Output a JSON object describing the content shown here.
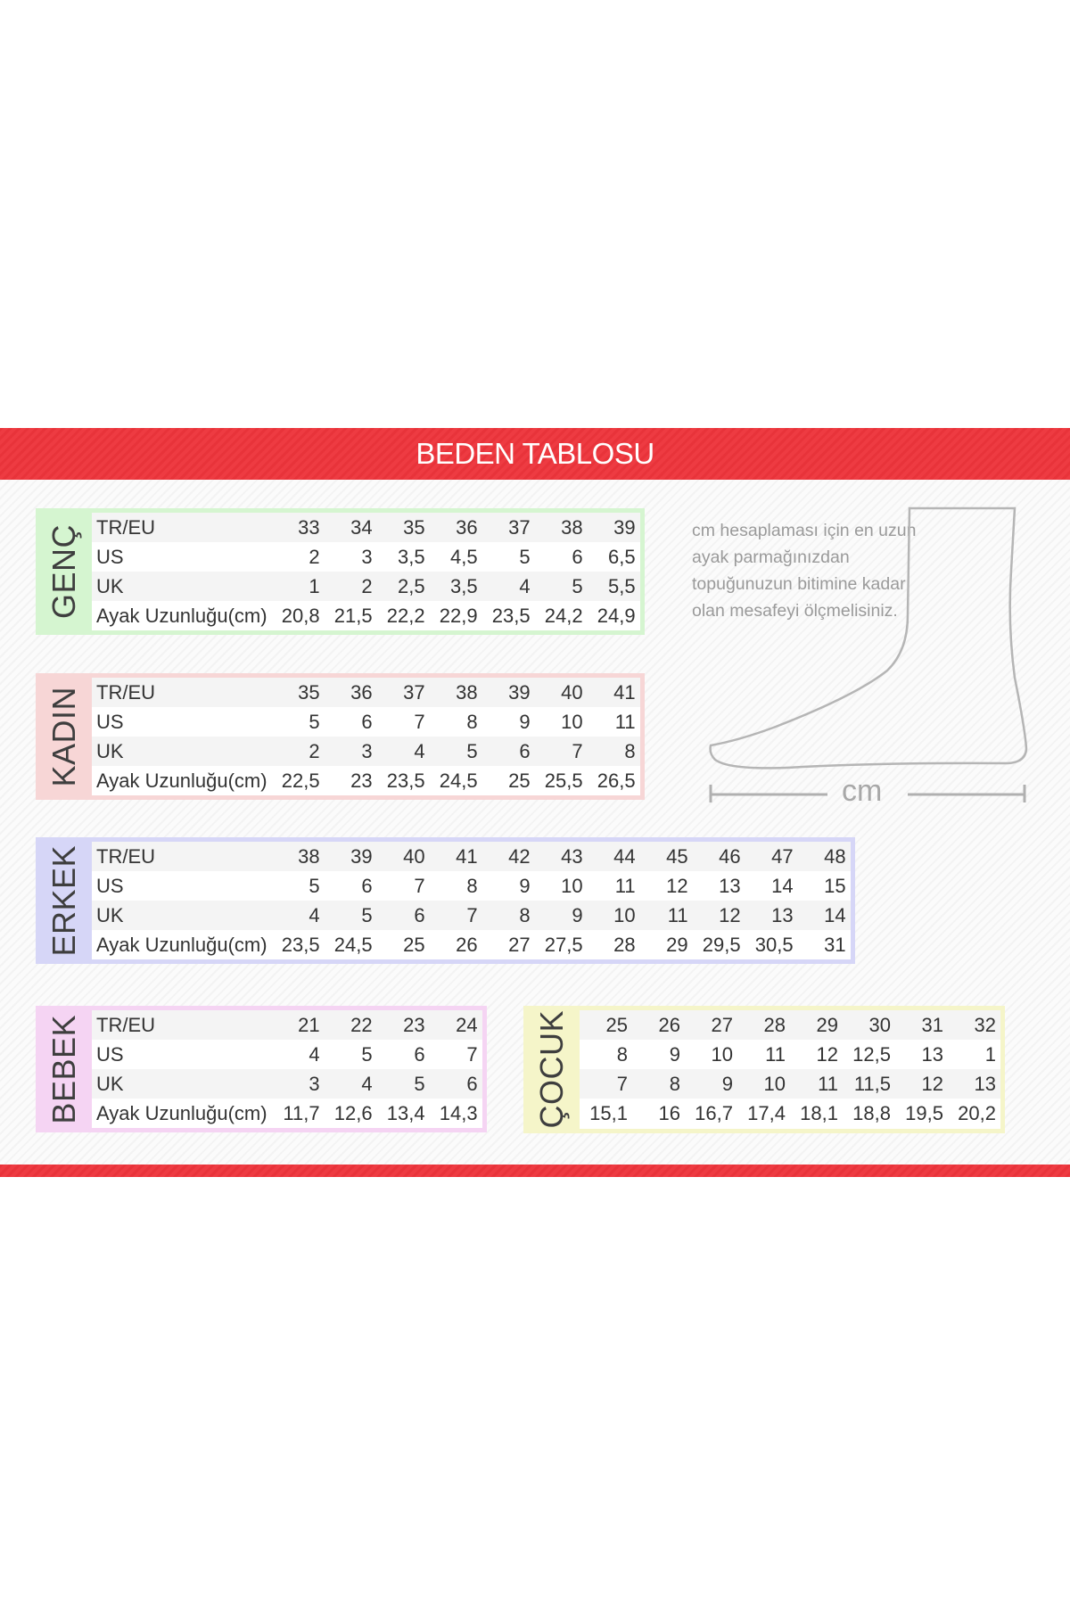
{
  "title": "BEDEN TABLOSU",
  "note": "cm hesaplaması için en uzun ayak parmağınızdan topuğunuzun bitimine kadar olan mesafeyi ölçmelisiniz.",
  "measure_label": "cm",
  "colors": {
    "header": "#e8333a",
    "genc": "#d5f5d0",
    "kadin": "#f7d6d6",
    "erkek": "#d6d6f7",
    "bebek": "#f5d4f3",
    "cocuk": "#f5f5c9"
  },
  "tables": [
    {
      "id": "genc",
      "label": "GENÇ",
      "rows": [
        {
          "label": "TR/EU",
          "values": [
            "33",
            "34",
            "35",
            "36",
            "37",
            "38",
            "39"
          ]
        },
        {
          "label": "US",
          "values": [
            "2",
            "3",
            "3,5",
            "4,5",
            "5",
            "6",
            "6,5"
          ]
        },
        {
          "label": "UK",
          "values": [
            "1",
            "2",
            "2,5",
            "3,5",
            "4",
            "5",
            "5,5"
          ]
        },
        {
          "label": "Ayak Uzunluğu(cm)",
          "values": [
            "20,8",
            "21,5",
            "22,2",
            "22,9",
            "23,5",
            "24,2",
            "24,9"
          ]
        }
      ]
    },
    {
      "id": "kadin",
      "label": "KADIN",
      "rows": [
        {
          "label": "TR/EU",
          "values": [
            "35",
            "36",
            "37",
            "38",
            "39",
            "40",
            "41"
          ]
        },
        {
          "label": "US",
          "values": [
            "5",
            "6",
            "7",
            "8",
            "9",
            "10",
            "11"
          ]
        },
        {
          "label": "UK",
          "values": [
            "2",
            "3",
            "4",
            "5",
            "6",
            "7",
            "8"
          ]
        },
        {
          "label": "Ayak Uzunluğu(cm)",
          "values": [
            "22,5",
            "23",
            "23,5",
            "24,5",
            "25",
            "25,5",
            "26,5"
          ]
        }
      ]
    },
    {
      "id": "erkek",
      "label": "ERKEK",
      "rows": [
        {
          "label": "TR/EU",
          "values": [
            "38",
            "39",
            "40",
            "41",
            "42",
            "43",
            "44",
            "45",
            "46",
            "47",
            "48"
          ]
        },
        {
          "label": "US",
          "values": [
            "5",
            "6",
            "7",
            "8",
            "9",
            "10",
            "11",
            "12",
            "13",
            "14",
            "15"
          ]
        },
        {
          "label": "UK",
          "values": [
            "4",
            "5",
            "6",
            "7",
            "8",
            "9",
            "10",
            "11",
            "12",
            "13",
            "14"
          ]
        },
        {
          "label": "Ayak Uzunluğu(cm)",
          "values": [
            "23,5",
            "24,5",
            "25",
            "26",
            "27",
            "27,5",
            "28",
            "29",
            "29,5",
            "30,5",
            "31"
          ]
        }
      ]
    },
    {
      "id": "bebek",
      "label": "BEBEK",
      "rows": [
        {
          "label": "TR/EU",
          "values": [
            "21",
            "22",
            "23",
            "24"
          ]
        },
        {
          "label": "US",
          "values": [
            "4",
            "5",
            "6",
            "7"
          ]
        },
        {
          "label": "UK",
          "values": [
            "3",
            "4",
            "5",
            "6"
          ]
        },
        {
          "label": "Ayak Uzunluğu(cm)",
          "values": [
            "11,7",
            "12,6",
            "13,4",
            "14,3"
          ]
        }
      ]
    },
    {
      "id": "cocuk",
      "label": "ÇOCUK",
      "rows": [
        {
          "values": [
            "25",
            "26",
            "27",
            "28",
            "29",
            "30",
            "31",
            "32"
          ]
        },
        {
          "values": [
            "8",
            "9",
            "10",
            "11",
            "12",
            "12,5",
            "13",
            "1"
          ]
        },
        {
          "values": [
            "7",
            "8",
            "9",
            "10",
            "11",
            "11,5",
            "12",
            "13"
          ]
        },
        {
          "values": [
            "15,1",
            "16",
            "16,7",
            "17,4",
            "18,1",
            "18,8",
            "19,5",
            "20,2"
          ]
        }
      ]
    }
  ]
}
